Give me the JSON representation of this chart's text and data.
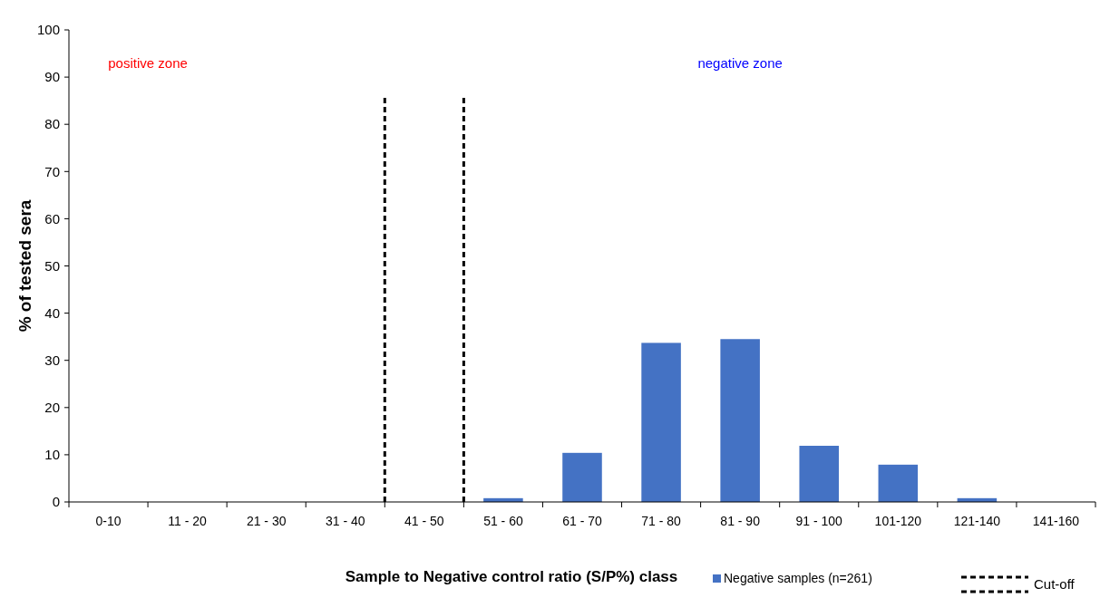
{
  "chart_data": {
    "type": "bar",
    "xlabel": "Sample to Negative control ratio (S/P%) class",
    "ylabel": "% of tested sera",
    "categories": [
      "0-10",
      "11 - 20",
      "21 - 30",
      "31 - 40",
      "41 - 50",
      "51 - 60",
      "61 - 70",
      "71 - 80",
      "81 - 90",
      "91 - 100",
      "101-120",
      "121-140",
      "141-160"
    ],
    "series": [
      {
        "name": "Negative samples (n=261)",
        "color": "#4472c4",
        "values": [
          0,
          0,
          0,
          0,
          0,
          0.8,
          10.4,
          33.7,
          34.5,
          11.9,
          7.9,
          0.8,
          0
        ]
      }
    ],
    "ylim": [
      0,
      100
    ],
    "yticks": [
      0,
      10,
      20,
      30,
      40,
      50,
      60,
      70,
      80,
      90,
      100
    ],
    "annotations": [
      "positive zone",
      "negative zone",
      "Cut-off"
    ],
    "legend": "bottom",
    "grid": false
  }
}
